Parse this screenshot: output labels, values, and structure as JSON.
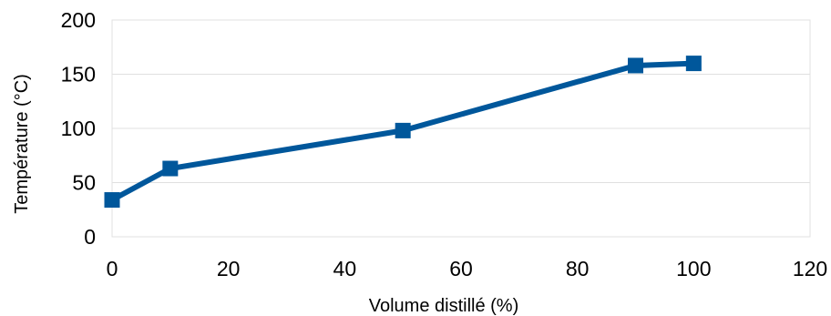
{
  "chart_data": {
    "type": "line",
    "title": "",
    "xlabel": "Volume distillé (%)",
    "ylabel": "Température (°C)",
    "xlim": [
      0,
      120
    ],
    "ylim": [
      0,
      200
    ],
    "x_ticks": [
      "0",
      "20",
      "40",
      "60",
      "80",
      "100",
      "120"
    ],
    "y_ticks": [
      "0",
      "50",
      "100",
      "150",
      "200"
    ],
    "grid": true,
    "legend": "none",
    "series": [
      {
        "color": "#00579b",
        "marker": "square",
        "points": [
          {
            "x": 0,
            "y": 34
          },
          {
            "x": 10,
            "y": 63
          },
          {
            "x": 50,
            "y": 98
          },
          {
            "x": 90,
            "y": 158
          },
          {
            "x": 100,
            "y": 160
          }
        ]
      }
    ]
  }
}
